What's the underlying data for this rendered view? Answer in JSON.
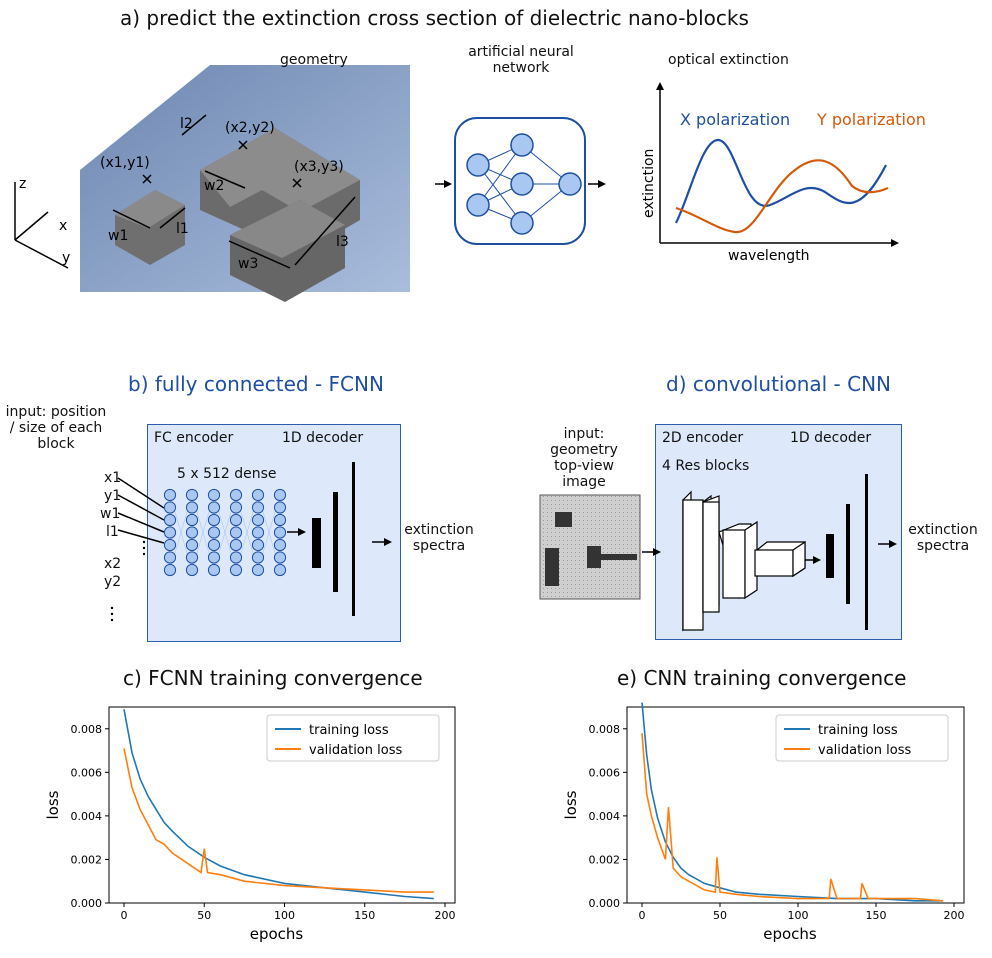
{
  "panel_a": {
    "title": "a) predict the extinction cross section of dielectric nano-blocks",
    "geometry_label": "geometry",
    "ann_label": "artificial neural network",
    "optical_label": "optical extinction",
    "axes": {
      "z": "z",
      "x": "x",
      "y": "y"
    },
    "labels": [
      "(x1,y1)",
      "(x2,y2)",
      "(x3,y3)",
      "l1",
      "l2",
      "l3",
      "w1",
      "w2",
      "w3"
    ],
    "extinction_plot": {
      "x_pol": "X polarization",
      "y_pol": "Y polarization",
      "xlabel": "wavelength",
      "ylabel": "extinction",
      "x_pol_color": "#1f4fa3",
      "y_pol_color": "#d45a0a"
    }
  },
  "panel_b": {
    "title": "b) fully connected - FCNN",
    "input_label": "input: position / size of each block",
    "enc_label": "FC encoder",
    "dec_label": "1D decoder",
    "dense_label": "5 x 512 dense",
    "inputs": [
      "x1",
      "y1",
      "w1",
      "l1",
      "x2",
      "y2"
    ],
    "output_label": "extinction spectra"
  },
  "panel_d": {
    "title": "d) convolutional - CNN",
    "input_label": "input: geometry top-view image",
    "enc_label": "2D encoder",
    "dec_label": "1D decoder",
    "res_label": "4 Res blocks",
    "output_label": "extinction spectra"
  },
  "chart_data": [
    {
      "type": "line",
      "title": "c) FCNN training convergence",
      "xlabel": "epochs",
      "ylabel": "loss",
      "xlim": [
        0,
        200
      ],
      "ylim": [
        0,
        0.009
      ],
      "xticks": [
        "0",
        "50",
        "100",
        "150",
        "200"
      ],
      "yticks": [
        "0.000",
        "0.002",
        "0.004",
        "0.006",
        "0.008"
      ],
      "legend_position": "top-right",
      "series": [
        {
          "name": "training loss",
          "color": "#1f77b4",
          "x": [
            0,
            5,
            10,
            15,
            20,
            25,
            30,
            40,
            50,
            60,
            75,
            100,
            125,
            150,
            175,
            193
          ],
          "y": [
            0.0089,
            0.0069,
            0.0057,
            0.0049,
            0.0043,
            0.0037,
            0.0033,
            0.0026,
            0.0021,
            0.0017,
            0.0013,
            0.0009,
            0.0007,
            0.0005,
            0.0003,
            0.0002
          ]
        },
        {
          "name": "validation loss",
          "color": "#ff7f0e",
          "x": [
            0,
            5,
            10,
            15,
            20,
            25,
            30,
            40,
            48,
            50,
            52,
            60,
            75,
            100,
            125,
            150,
            175,
            193
          ],
          "y": [
            0.0071,
            0.0053,
            0.0043,
            0.0036,
            0.0029,
            0.0027,
            0.0023,
            0.0018,
            0.0014,
            0.0025,
            0.0014,
            0.0013,
            0.001,
            0.0008,
            0.0007,
            0.0006,
            0.0005,
            0.0005
          ]
        }
      ]
    },
    {
      "type": "line",
      "title": "e) CNN training convergence",
      "xlabel": "epochs",
      "ylabel": "loss",
      "xlim": [
        0,
        200
      ],
      "ylim": [
        0,
        0.009
      ],
      "xticks": [
        "0",
        "50",
        "100",
        "150",
        "200"
      ],
      "yticks": [
        "0.000",
        "0.002",
        "0.004",
        "0.006",
        "0.008"
      ],
      "legend_position": "top-right",
      "series": [
        {
          "name": "training loss",
          "color": "#1f77b4",
          "x": [
            0,
            3,
            6,
            10,
            15,
            20,
            25,
            30,
            40,
            50,
            60,
            75,
            100,
            125,
            150,
            175,
            193
          ],
          "y": [
            0.0092,
            0.0068,
            0.0052,
            0.0039,
            0.0028,
            0.0021,
            0.0016,
            0.0013,
            0.0009,
            0.0007,
            0.0005,
            0.0004,
            0.0003,
            0.0002,
            0.0002,
            0.0001,
            0.0001
          ]
        },
        {
          "name": "validation loss",
          "color": "#ff7f0e",
          "x": [
            0,
            3,
            6,
            10,
            15,
            17,
            20,
            25,
            30,
            40,
            47,
            48,
            50,
            60,
            75,
            100,
            120,
            121,
            125,
            140,
            141,
            145,
            175,
            193
          ],
          "y": [
            0.0078,
            0.005,
            0.004,
            0.003,
            0.002,
            0.0044,
            0.0016,
            0.0012,
            0.001,
            0.0006,
            0.0005,
            0.0021,
            0.0005,
            0.0004,
            0.0003,
            0.0002,
            0.0002,
            0.0011,
            0.0002,
            0.0002,
            0.0009,
            0.0002,
            0.0002,
            0.0001
          ]
        }
      ]
    }
  ]
}
